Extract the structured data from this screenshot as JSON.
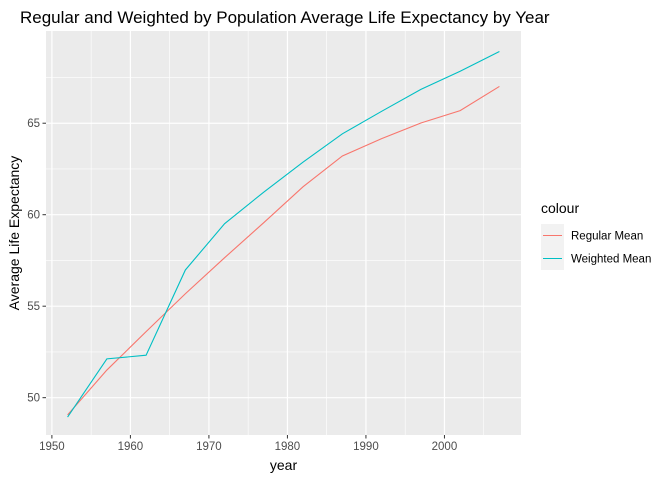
{
  "chart_data": {
    "type": "line",
    "title": "Regular and Weighted by Population Average Life Expectancy by Year",
    "xlabel": "year",
    "ylabel": "Average Life Expectancy",
    "xlim": [
      1949.25,
      2009.75
    ],
    "ylim": [
      47.96,
      70.04
    ],
    "x_ticks": [
      1950,
      1960,
      1970,
      1980,
      1990,
      2000
    ],
    "y_ticks": [
      50,
      55,
      60,
      65
    ],
    "grid": true,
    "legend_position": "right",
    "legend_title": "colour",
    "x": [
      1952,
      1957,
      1962,
      1967,
      1972,
      1977,
      1982,
      1987,
      1992,
      1997,
      2002,
      2007
    ],
    "series": [
      {
        "name": "Regular Mean",
        "color": "#F8766D",
        "values": [
          49.06,
          51.51,
          53.61,
          55.68,
          57.65,
          59.57,
          61.53,
          63.21,
          64.16,
          65.01,
          65.69,
          67.01
        ]
      },
      {
        "name": "Weighted Mean",
        "color": "#00BFC4",
        "values": [
          48.94,
          52.12,
          52.32,
          56.98,
          59.51,
          61.24,
          62.88,
          64.42,
          65.65,
          66.85,
          67.84,
          68.92
        ]
      }
    ]
  }
}
